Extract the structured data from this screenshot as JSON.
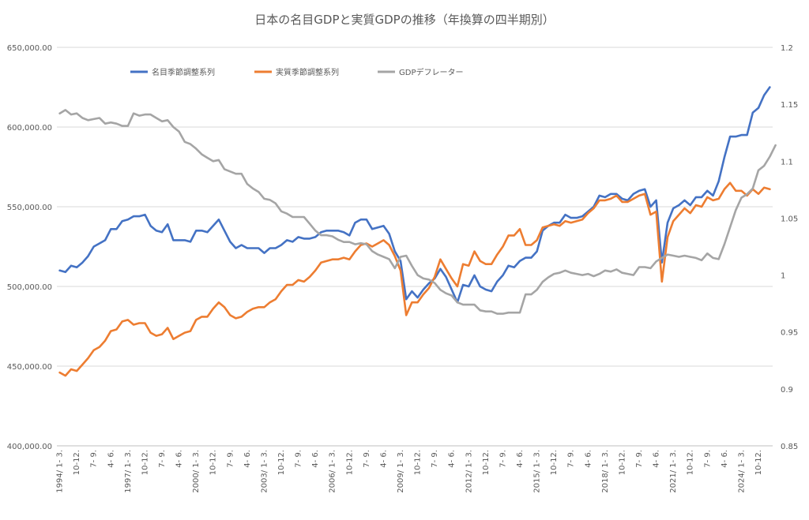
{
  "chart_data": {
    "type": "line",
    "title": "日本の名目GDPと実質GDPの推移（年換算の四半期別）",
    "y_left": {
      "ylim": [
        400000,
        650000
      ],
      "ticks": [
        "400,000.00",
        "450,000.00",
        "500,000.00",
        "550,000.00",
        "600,000.00",
        "650,000.00"
      ]
    },
    "y_right": {
      "ylim": [
        0.85,
        1.2
      ],
      "ticks": [
        "0.85",
        "0.9",
        "0.95",
        "1",
        "1.05",
        "1.1",
        "1.15",
        "1.2"
      ]
    },
    "grid": true,
    "legend_position": "top-left",
    "x_tick_labels": [
      "1994/ 1- 3.",
      "10-12.",
      "7- 9.",
      "4- 6.",
      "1997/ 1- 3.",
      "10-12.",
      "7- 9.",
      "4- 6.",
      "2000/ 1- 3.",
      "10-12.",
      "7- 9.",
      "4- 6.",
      "2003/ 1- 3.",
      "10-12.",
      "7- 9.",
      "4- 6.",
      "2006/ 1- 3.",
      "10-12.",
      "7- 9.",
      "4- 6.",
      "2009/ 1- 3.",
      "10-12.",
      "7- 9.",
      "4- 6.",
      "2012/ 1- 3.",
      "10-12.",
      "7- 9.",
      "4- 6.",
      "2015/ 1- 3.",
      "10-12.",
      "7- 9.",
      "4- 6.",
      "2018/ 1- 3.",
      "10-12.",
      "7- 9.",
      "4- 6.",
      "2021/ 1- 3.",
      "10-12.",
      "7- 9.",
      "4- 6.",
      "2024/ 1- 3.",
      "10-12."
    ],
    "x_tick_step": 3,
    "series": [
      {
        "name": "名目季節調整系列",
        "color": "#4472c4",
        "axis": "left",
        "values": [
          510000,
          509000,
          513000,
          512000,
          515000,
          519000,
          525000,
          527000,
          529000,
          536000,
          536000,
          541000,
          542000,
          544000,
          544000,
          545000,
          538000,
          535000,
          534000,
          539000,
          529000,
          529000,
          529000,
          528000,
          535000,
          535000,
          534000,
          538000,
          542000,
          535000,
          528000,
          524000,
          526000,
          524000,
          524000,
          524000,
          521000,
          524000,
          524000,
          526000,
          529000,
          528000,
          531000,
          530000,
          530000,
          531000,
          534000,
          535000,
          535000,
          535000,
          534000,
          532000,
          540000,
          542000,
          542000,
          536000,
          537000,
          538000,
          533000,
          522000,
          516000,
          492000,
          497000,
          493000,
          498000,
          502000,
          505000,
          511000,
          506000,
          498000,
          490000,
          501000,
          500000,
          507000,
          500000,
          498000,
          497000,
          503000,
          507000,
          513000,
          512000,
          516000,
          518000,
          518000,
          522000,
          535000,
          538000,
          540000,
          540000,
          545000,
          543000,
          543000,
          544000,
          547000,
          550000,
          557000,
          556000,
          558000,
          558000,
          555000,
          554000,
          558000,
          560000,
          561000,
          550000,
          554000,
          515000,
          540000,
          549000,
          551000,
          554000,
          551000,
          556000,
          556000,
          560000,
          557000,
          566000,
          581000,
          594000,
          594000,
          595000,
          595000,
          609000,
          612000,
          620000,
          625000
        ]
      },
      {
        "name": "実質季節調整系列",
        "color": "#ed7d31",
        "axis": "left",
        "values": [
          446000,
          444000,
          448000,
          447000,
          451000,
          455000,
          460000,
          462000,
          466000,
          472000,
          473000,
          478000,
          479000,
          476000,
          477000,
          477000,
          471000,
          469000,
          470000,
          474000,
          467000,
          469000,
          471000,
          472000,
          479000,
          481000,
          481000,
          486000,
          490000,
          487000,
          482000,
          480000,
          481000,
          484000,
          486000,
          487000,
          487000,
          490000,
          492000,
          497000,
          501000,
          501000,
          504000,
          503000,
          506000,
          510000,
          515000,
          516000,
          517000,
          517000,
          518000,
          517000,
          522000,
          526000,
          527000,
          525000,
          527000,
          529000,
          526000,
          519000,
          510000,
          482000,
          490000,
          490000,
          495000,
          499000,
          506000,
          517000,
          511000,
          505000,
          500000,
          514000,
          513000,
          522000,
          516000,
          514000,
          514000,
          520000,
          525000,
          532000,
          532000,
          536000,
          526000,
          526000,
          529000,
          537000,
          538000,
          539000,
          538000,
          541000,
          540000,
          541000,
          542000,
          546000,
          549000,
          554000,
          554000,
          555000,
          557000,
          553000,
          553000,
          555000,
          557000,
          558000,
          545000,
          547000,
          503000,
          531000,
          541000,
          545000,
          549000,
          546000,
          551000,
          550000,
          556000,
          554000,
          555000,
          561000,
          565000,
          560000,
          560000,
          557000,
          561000,
          558000,
          562000,
          561000
        ]
      },
      {
        "name": "GDPデフレーター",
        "color": "#a5a5a5",
        "axis": "right",
        "values": [
          1.142,
          1.145,
          1.141,
          1.142,
          1.138,
          1.136,
          1.137,
          1.138,
          1.133,
          1.134,
          1.133,
          1.131,
          1.131,
          1.142,
          1.14,
          1.141,
          1.141,
          1.138,
          1.135,
          1.136,
          1.13,
          1.126,
          1.117,
          1.115,
          1.111,
          1.106,
          1.103,
          1.1,
          1.101,
          1.093,
          1.091,
          1.089,
          1.089,
          1.08,
          1.076,
          1.073,
          1.067,
          1.066,
          1.063,
          1.056,
          1.054,
          1.051,
          1.051,
          1.051,
          1.045,
          1.039,
          1.035,
          1.035,
          1.034,
          1.031,
          1.029,
          1.029,
          1.027,
          1.028,
          1.027,
          1.021,
          1.018,
          1.016,
          1.014,
          1.006,
          1.016,
          1.017,
          1.008,
          1.0,
          0.997,
          0.996,
          0.993,
          0.987,
          0.984,
          0.982,
          0.976,
          0.974,
          0.974,
          0.974,
          0.969,
          0.968,
          0.968,
          0.966,
          0.966,
          0.967,
          0.967,
          0.967,
          0.983,
          0.983,
          0.987,
          0.994,
          0.998,
          1.001,
          1.002,
          1.004,
          1.002,
          1.001,
          1.0,
          1.001,
          0.999,
          1.001,
          1.004,
          1.003,
          1.005,
          1.002,
          1.001,
          1.0,
          1.007,
          1.007,
          1.006,
          1.012,
          1.015,
          1.018,
          1.017,
          1.016,
          1.017,
          1.016,
          1.015,
          1.013,
          1.019,
          1.015,
          1.014,
          1.027,
          1.042,
          1.057,
          1.068,
          1.071,
          1.076,
          1.092,
          1.096,
          1.104,
          1.114
        ]
      }
    ]
  }
}
